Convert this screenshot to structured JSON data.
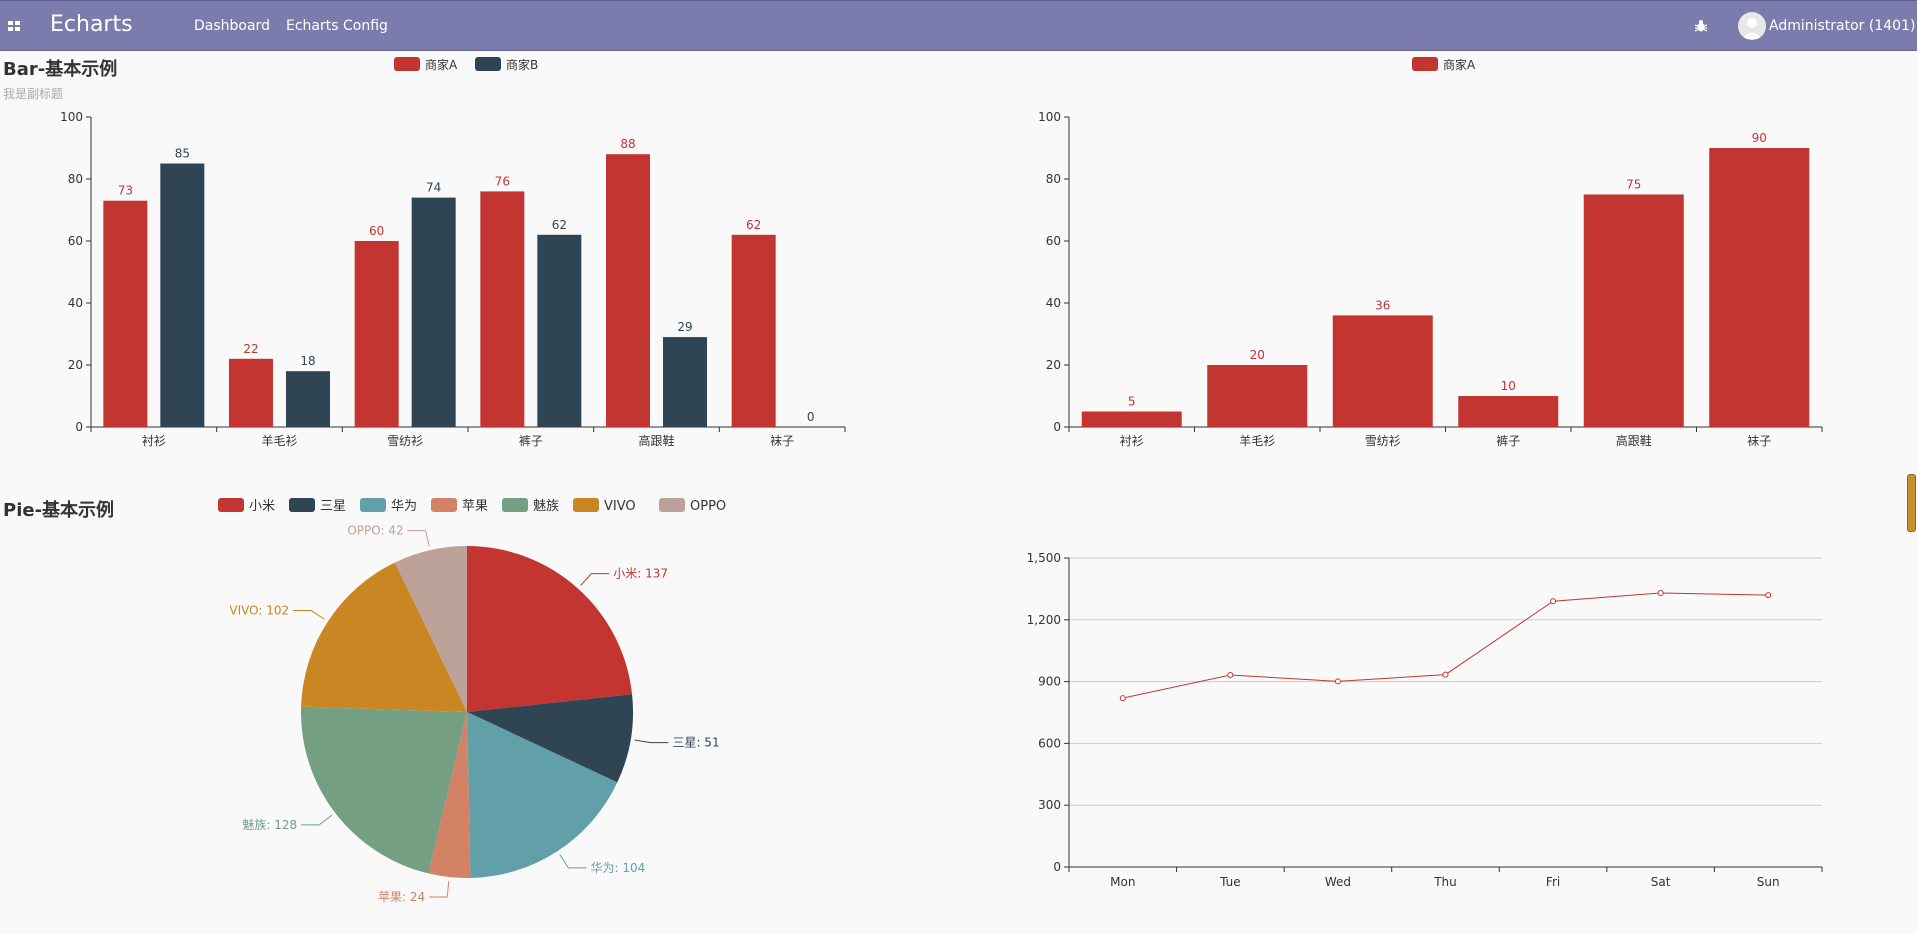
{
  "navbar": {
    "brand": "Echarts",
    "items": [
      "Dashboard",
      "Echarts Config"
    ],
    "user": "Administrator (1401)",
    "bug_icon": "bug-icon",
    "apps_icon": "apps-grid-icon",
    "color": "#7c7bad"
  },
  "charts": {
    "bar": {
      "title": "Bar-基本示例",
      "subtitle": "我是副标题"
    },
    "pie": {
      "title": "Pie-基本示例"
    }
  },
  "chart_data": [
    {
      "id": "bar1",
      "type": "bar",
      "title": "Bar-基本示例",
      "subtitle": "我是副标题",
      "categories": [
        "衬衫",
        "羊毛衫",
        "雪纺衫",
        "裤子",
        "高跟鞋",
        "袜子"
      ],
      "series": [
        {
          "name": "商家A",
          "color": "#c23531",
          "values": [
            73,
            22,
            60,
            76,
            88,
            62
          ]
        },
        {
          "name": "商家B",
          "color": "#2f4554",
          "values": [
            85,
            18,
            74,
            62,
            29,
            0
          ]
        }
      ],
      "ylim": [
        0,
        100
      ],
      "yticks": [
        0,
        20,
        40,
        60,
        80,
        100
      ],
      "legend": "top-center"
    },
    {
      "id": "bar2",
      "type": "bar",
      "categories": [
        "衬衫",
        "羊毛衫",
        "雪纺衫",
        "裤子",
        "高跟鞋",
        "袜子"
      ],
      "series": [
        {
          "name": "商家A",
          "color": "#c23531",
          "values": [
            5,
            20,
            36,
            10,
            75,
            90
          ]
        }
      ],
      "ylim": [
        0,
        100
      ],
      "yticks": [
        0,
        20,
        40,
        60,
        80,
        100
      ],
      "legend": "top-center"
    },
    {
      "id": "pie1",
      "type": "pie",
      "title": "Pie-基本示例",
      "slices": [
        {
          "name": "小米",
          "value": 137,
          "color": "#c23531"
        },
        {
          "name": "三星",
          "value": 51,
          "color": "#2f4554"
        },
        {
          "name": "华为",
          "value": 104,
          "color": "#61a0a8"
        },
        {
          "name": "苹果",
          "value": 24,
          "color": "#d48265"
        },
        {
          "name": "魅族",
          "value": 128,
          "color": "#749f83"
        },
        {
          "name": "VIVO",
          "value": 102,
          "color": "#ca8622"
        },
        {
          "name": "OPPO",
          "value": 42,
          "color": "#bda29a"
        }
      ],
      "legend": "top"
    },
    {
      "id": "line1",
      "type": "line",
      "x": [
        "Mon",
        "Tue",
        "Wed",
        "Thu",
        "Fri",
        "Sat",
        "Sun"
      ],
      "series": [
        {
          "color": "#c23531",
          "values": [
            820,
            932,
            901,
            934,
            1290,
            1330,
            1320
          ]
        }
      ],
      "ylim": [
        0,
        1500
      ],
      "yticks": [
        "0",
        "300",
        "600",
        "900",
        "1,200",
        "1,500"
      ],
      "grid": true
    }
  ]
}
